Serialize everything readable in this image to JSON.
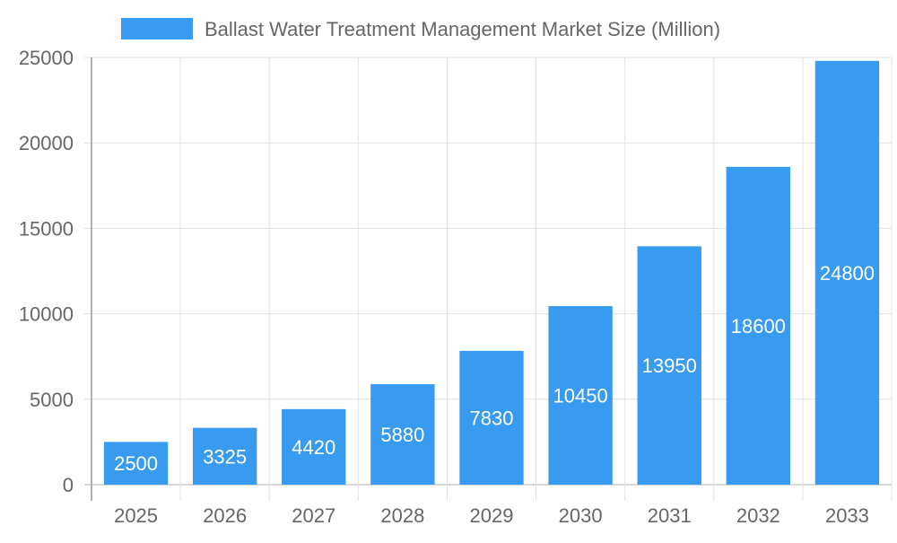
{
  "chart_data": {
    "type": "bar",
    "title": "",
    "xlabel": "",
    "ylabel": "",
    "categories": [
      "2025",
      "2026",
      "2027",
      "2028",
      "2029",
      "2030",
      "2031",
      "2032",
      "2033"
    ],
    "series": [
      {
        "name": "Ballast Water Treatment Management Market Size (Million)",
        "values": [
          2500,
          3325,
          4420,
          5880,
          7830,
          10450,
          13950,
          18600,
          24800
        ]
      }
    ],
    "ylim": [
      0,
      25000
    ],
    "yticks": [
      0,
      5000,
      10000,
      15000,
      20000,
      25000
    ],
    "grid": true,
    "legend_position": "top",
    "data_labels": true,
    "colors": {
      "bar": "#389bef",
      "grid": "#e0e0e0",
      "axis": "#b0b0b0",
      "text": "#666666",
      "label": "#ffffff"
    }
  }
}
